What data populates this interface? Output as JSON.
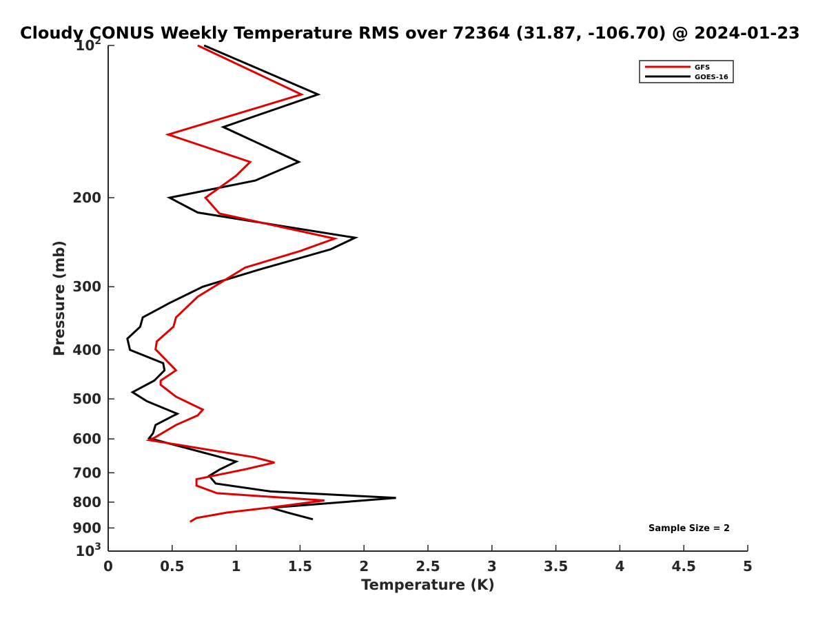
{
  "chart_data": {
    "type": "line",
    "title": "Cloudy CONUS Weekly Temperature RMS over 72364 (31.87, -106.70) @ 2024-01-23",
    "xlabel": "Temperature (K)",
    "ylabel": "Pressure (mb)",
    "xlim": [
      0,
      5
    ],
    "ylim": [
      100,
      1000
    ],
    "y_scale": "log",
    "y_reversed": true,
    "x_ticks": [
      "0",
      "0.5",
      "1",
      "1.5",
      "2",
      "2.5",
      "3",
      "3.5",
      "4",
      "4.5",
      "5"
    ],
    "y_ticks": [
      {
        "value": 100,
        "base": "10",
        "exp": "2",
        "label": ""
      },
      {
        "value": 200,
        "base": "",
        "exp": "",
        "label": "200"
      },
      {
        "value": 300,
        "base": "",
        "exp": "",
        "label": "300"
      },
      {
        "value": 400,
        "base": "",
        "exp": "",
        "label": "400"
      },
      {
        "value": 500,
        "base": "",
        "exp": "",
        "label": "500"
      },
      {
        "value": 600,
        "base": "",
        "exp": "",
        "label": "600"
      },
      {
        "value": 700,
        "base": "",
        "exp": "",
        "label": "700"
      },
      {
        "value": 800,
        "base": "",
        "exp": "",
        "label": "800"
      },
      {
        "value": 900,
        "base": "",
        "exp": "",
        "label": "900"
      },
      {
        "value": 1000,
        "base": "10",
        "exp": "3",
        "label": ""
      }
    ],
    "legend_position": "top-right",
    "annotation": "Sample Size = 2",
    "series": [
      {
        "name": "GFS",
        "color": "#e00000",
        "points": [
          [
            0.7,
            100
          ],
          [
            1.51,
            125
          ],
          [
            0.47,
            150
          ],
          [
            1.11,
            170
          ],
          [
            1.0,
            181
          ],
          [
            0.76,
            200
          ],
          [
            0.87,
            215
          ],
          [
            1.77,
            241
          ],
          [
            1.5,
            255
          ],
          [
            1.07,
            275
          ],
          [
            0.7,
            314
          ],
          [
            0.53,
            345
          ],
          [
            0.51,
            360
          ],
          [
            0.38,
            385
          ],
          [
            0.37,
            399
          ],
          [
            0.53,
            439
          ],
          [
            0.41,
            460
          ],
          [
            0.41,
            469
          ],
          [
            0.53,
            495
          ],
          [
            0.74,
            525
          ],
          [
            0.7,
            539
          ],
          [
            0.53,
            563
          ],
          [
            0.36,
            597
          ],
          [
            0.32,
            603
          ],
          [
            1.14,
            652
          ],
          [
            1.3,
            668
          ],
          [
            1.06,
            690
          ],
          [
            0.69,
            721
          ],
          [
            0.69,
            742
          ],
          [
            0.85,
            768
          ],
          [
            1.69,
            794
          ],
          [
            1.3,
            818
          ],
          [
            0.93,
            839
          ],
          [
            0.69,
            860
          ],
          [
            0.64,
            875
          ]
        ]
      },
      {
        "name": "GOES-16",
        "color": "#000000",
        "points": [
          [
            0.75,
            100
          ],
          [
            1.64,
            125
          ],
          [
            0.9,
            145
          ],
          [
            1.49,
            170
          ],
          [
            1.15,
            185
          ],
          [
            0.48,
            200
          ],
          [
            0.7,
            214
          ],
          [
            1.93,
            240
          ],
          [
            1.74,
            253
          ],
          [
            1.17,
            278
          ],
          [
            0.74,
            300
          ],
          [
            0.48,
            323
          ],
          [
            0.27,
            345
          ],
          [
            0.25,
            360
          ],
          [
            0.15,
            380
          ],
          [
            0.17,
            400
          ],
          [
            0.43,
            425
          ],
          [
            0.44,
            439
          ],
          [
            0.36,
            460
          ],
          [
            0.19,
            485
          ],
          [
            0.3,
            505
          ],
          [
            0.54,
            535
          ],
          [
            0.37,
            563
          ],
          [
            0.35,
            585
          ],
          [
            0.32,
            598
          ],
          [
            0.86,
            650
          ],
          [
            1.0,
            665
          ],
          [
            0.87,
            690
          ],
          [
            0.79,
            710
          ],
          [
            0.84,
            735
          ],
          [
            1.27,
            762
          ],
          [
            2.25,
            785
          ],
          [
            1.27,
            821
          ],
          [
            1.41,
            840
          ],
          [
            1.6,
            865
          ]
        ]
      }
    ]
  }
}
